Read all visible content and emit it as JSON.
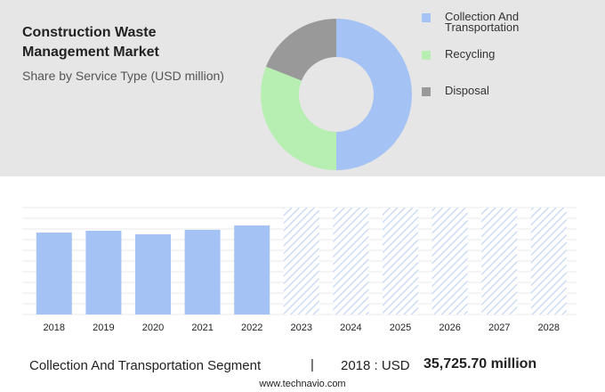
{
  "chart_data": [
    {
      "type": "pie",
      "title": "Construction Waste Management Market",
      "subtitle": "Share by Service Type (USD million)",
      "categories": [
        "Collection And Transportation",
        "Recycling",
        "Disposal"
      ],
      "values": [
        50,
        31,
        19
      ],
      "colors": [
        "#a4c2f4",
        "#b7efb2",
        "#999999"
      ]
    },
    {
      "type": "bar",
      "categories": [
        "2018",
        "2019",
        "2020",
        "2021",
        "2022",
        "2023",
        "2024",
        "2025",
        "2026",
        "2027",
        "2028"
      ],
      "values": [
        35725.7,
        36500,
        34950,
        36900,
        38800,
        null,
        null,
        null,
        null,
        null,
        null
      ],
      "color": "#a4c2f4",
      "ylim": [
        0,
        46600
      ]
    }
  ],
  "footer": {
    "segment": "Collection And Transportation Segment",
    "separator": "|",
    "year_text": "2018 : USD",
    "amount": "35,725.70 million",
    "source": "www.technavio.com"
  }
}
